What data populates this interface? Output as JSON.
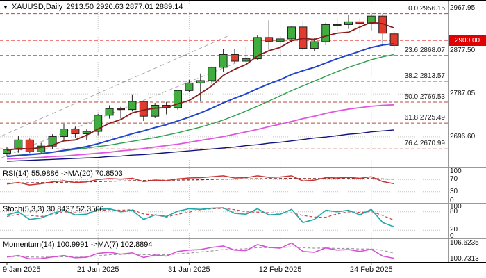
{
  "header": {
    "symbol": "XAUUSD,Daily",
    "ohlc": "2913.50 2920.63 2877.01 2889.14"
  },
  "icons": {
    "symbol_marker": "▼"
  },
  "chart_data": {
    "type": "candlestick",
    "title": "XAUUSD Daily",
    "y_range": [
      2634.8,
      2982
    ],
    "y_axis": {
      "labels": [
        {
          "text": "2967.95",
          "price": 2967.95
        },
        {
          "text": "2877.50",
          "price": 2877.5
        },
        {
          "text": "2787.05",
          "price": 2787.05
        },
        {
          "text": "2696.60",
          "price": 2696.6
        }
      ],
      "current": {
        "text": "2900.00",
        "price": 2900.0
      }
    },
    "x_axis": {
      "tick_labels": [
        {
          "text": "9 Jan 2025",
          "index": 0
        },
        {
          "text": "21 Jan 2025",
          "index": 8
        },
        {
          "text": "31 Jan 2025",
          "index": 16
        },
        {
          "text": "12 Feb 2025",
          "index": 24
        },
        {
          "text": "24 Feb 2025",
          "index": 32
        }
      ]
    },
    "colors": {
      "up": "#3fae3f",
      "down": "#e23b2e",
      "outline": "#222222",
      "grid": "#c8c8c8",
      "separator": "#999999",
      "fib": "#b84a3a",
      "price_line": "#e00000",
      "badge_bg": "#e00000",
      "badge_text": "#ffffff"
    },
    "candles": {
      "dates": [
        "9 Jan",
        "10 Jan",
        "13 Jan",
        "14 Jan",
        "15 Jan",
        "16 Jan",
        "17 Jan",
        "20 Jan",
        "21 Jan",
        "22 Jan",
        "23 Jan",
        "24 Jan",
        "27 Jan",
        "28 Jan",
        "29 Jan",
        "30 Jan",
        "31 Jan",
        "3 Feb",
        "4 Feb",
        "5 Feb",
        "6 Feb",
        "7 Feb",
        "10 Feb",
        "11 Feb",
        "12 Feb",
        "13 Feb",
        "14 Feb",
        "17 Feb",
        "18 Feb",
        "19 Feb",
        "20 Feb",
        "21 Feb",
        "24 Feb",
        "25 Feb",
        "26 Feb"
      ],
      "ohlc": [
        [
          2662,
          2675,
          2655,
          2670
        ],
        [
          2670,
          2698,
          2663,
          2690
        ],
        [
          2690,
          2693,
          2662,
          2665
        ],
        [
          2665,
          2684,
          2660,
          2677
        ],
        [
          2677,
          2702,
          2670,
          2697
        ],
        [
          2697,
          2724,
          2690,
          2713
        ],
        [
          2713,
          2718,
          2695,
          2703
        ],
        [
          2703,
          2712,
          2689,
          2708
        ],
        [
          2708,
          2745,
          2700,
          2742
        ],
        [
          2742,
          2763,
          2735,
          2756
        ],
        [
          2756,
          2760,
          2735,
          2754
        ],
        [
          2754,
          2786,
          2750,
          2771
        ],
        [
          2771,
          2772,
          2730,
          2740
        ],
        [
          2740,
          2768,
          2736,
          2763
        ],
        [
          2763,
          2770,
          2744,
          2758
        ],
        [
          2758,
          2796,
          2754,
          2794
        ],
        [
          2794,
          2817,
          2790,
          2810
        ],
        [
          2810,
          2830,
          2772,
          2815
        ],
        [
          2815,
          2845,
          2808,
          2843
        ],
        [
          2843,
          2882,
          2834,
          2870
        ],
        [
          2870,
          2882,
          2852,
          2856
        ],
        [
          2856,
          2887,
          2852,
          2861
        ],
        [
          2861,
          2911,
          2858,
          2906
        ],
        [
          2906,
          2942,
          2880,
          2898
        ],
        [
          2898,
          2909,
          2864,
          2903
        ],
        [
          2903,
          2930,
          2895,
          2928
        ],
        [
          2928,
          2940,
          2877,
          2883
        ],
        [
          2883,
          2905,
          2878,
          2897
        ],
        [
          2897,
          2937,
          2890,
          2933
        ],
        [
          2933,
          2947,
          2918,
          2933
        ],
        [
          2933,
          2954,
          2924,
          2939
        ],
        [
          2939,
          2946,
          2916,
          2936
        ],
        [
          2936,
          2956.15,
          2920,
          2951
        ],
        [
          2951,
          2956,
          2888,
          2915
        ],
        [
          2913.5,
          2920.63,
          2877.01,
          2889.14
        ]
      ]
    },
    "overlays": [
      {
        "name": "ma-navy-line",
        "color": "#10137e",
        "width": 1.4,
        "values": [
          2645,
          2646,
          2647,
          2648,
          2649,
          2650,
          2651,
          2652,
          2653,
          2655,
          2656,
          2658,
          2659,
          2661,
          2663,
          2665,
          2667,
          2669,
          2671,
          2673,
          2675,
          2678,
          2680,
          2683,
          2685,
          2688,
          2691,
          2694,
          2696,
          2699,
          2702,
          2704,
          2707,
          2709,
          2711
        ]
      },
      {
        "name": "ma-magenta-line",
        "color": "#e055e0",
        "width": 1.8,
        "values": [
          2650,
          2651,
          2652,
          2653,
          2655,
          2656,
          2658,
          2660,
          2662,
          2664,
          2667,
          2669,
          2672,
          2675,
          2678,
          2681,
          2685,
          2689,
          2693,
          2697,
          2702,
          2707,
          2712,
          2718,
          2723,
          2729,
          2735,
          2740,
          2746,
          2751,
          2755,
          2758,
          2761,
          2763,
          2764
        ]
      },
      {
        "name": "ma-green-line",
        "color": "#2e9e50",
        "width": 1.4,
        "values": [
          2656,
          2658,
          2660,
          2662,
          2664,
          2667,
          2670,
          2673,
          2676,
          2679,
          2683,
          2687,
          2691,
          2695,
          2700,
          2705,
          2711,
          2717,
          2724,
          2732,
          2741,
          2751,
          2761,
          2772,
          2783,
          2794,
          2804,
          2814,
          2824,
          2834,
          2843,
          2851,
          2859,
          2865,
          2870
        ]
      },
      {
        "name": "ma-blue-line",
        "color": "#2144cc",
        "width": 2,
        "values": [
          2655,
          2657,
          2659,
          2661,
          2664,
          2668,
          2672,
          2676,
          2682,
          2689,
          2696,
          2703,
          2709,
          2716,
          2722,
          2730,
          2738,
          2747,
          2757,
          2768,
          2778,
          2787,
          2798,
          2808,
          2817,
          2828,
          2836,
          2843,
          2852,
          2861,
          2869,
          2877,
          2885,
          2890,
          2893
        ]
      },
      {
        "name": "ma-darkred-line",
        "color": "#8b1a1a",
        "width": 1.8,
        "values": [
          2668,
          2672,
          2671,
          2674,
          2679,
          2688,
          2690,
          2700,
          2713,
          2725,
          2733,
          2747,
          2753,
          2757,
          2758,
          2766,
          2773,
          2788,
          2804,
          2826,
          2839,
          2849,
          2867,
          2878,
          2885,
          2899,
          2904,
          2902,
          2909,
          2915,
          2917,
          2928,
          2938,
          2935,
          2926
        ]
      }
    ],
    "fibonacci": [
      {
        "text": "0.0 2956.15",
        "level": 0.0,
        "price": 2956.15
      },
      {
        "text": "23.6 2868.07",
        "level": 23.6,
        "price": 2868.07
      },
      {
        "text": "38.2 2813.57",
        "level": 38.2,
        "price": 2813.57
      },
      {
        "text": "50.0 2769.53",
        "level": 50.0,
        "price": 2769.53
      },
      {
        "text": "61.8 2725.49",
        "level": 61.8,
        "price": 2725.49
      },
      {
        "text": "76.4 2670.99",
        "level": 76.4,
        "price": 2670.99
      }
    ],
    "trendlines": [
      {
        "i1": -0.5,
        "p1": 2698,
        "i2": 19.5,
        "p2": 2910
      },
      {
        "i1": -0.5,
        "p1": 2652,
        "i2": 20.5,
        "p2": 2856
      }
    ],
    "indicators": {
      "rsi": {
        "title": "RSI(14) 55.9886  ->MA(20) 70.8503",
        "range": [
          0,
          100
        ],
        "grid_levels": [
          70,
          30
        ],
        "axis_labels": [
          {
            "text": "100",
            "v": 100
          },
          {
            "text": "70",
            "v": 70
          },
          {
            "text": "30",
            "v": 30
          },
          {
            "text": "0",
            "v": 0
          }
        ],
        "lines": [
          {
            "name": "ma",
            "color": "#7a2020",
            "dash": "4,3",
            "width": 1.2,
            "values": [
              58,
              58.5,
              59,
              59.5,
              60,
              61,
              61.5,
              62,
              63,
              64,
              65,
              66,
              66.5,
              67,
              67.5,
              68,
              68.5,
              69,
              70,
              71,
              71.5,
              72,
              72.5,
              73,
              73.2,
              73.5,
              73.2,
              73,
              73.2,
              73.3,
              73.4,
              73.3,
              73.2,
              72,
              70.85
            ]
          },
          {
            "name": "main",
            "color": "#cc3333",
            "dash": "",
            "width": 1.5,
            "values": [
              55,
              60,
              52,
              56,
              62,
              66,
              60,
              62,
              70,
              73,
              71,
              74,
              63,
              68,
              66,
              72,
              75,
              76,
              79,
              82,
              75,
              76,
              82,
              77,
              78,
              82,
              65,
              68,
              76,
              75,
              77,
              74,
              79,
              63,
              55.99
            ]
          }
        ]
      },
      "stoch": {
        "title": "Stoch(5,3,3) 30.8437 52.3506",
        "range": [
          0,
          100
        ],
        "grid_levels": [
          80,
          20
        ],
        "axis_labels": [
          {
            "text": "100",
            "v": 100
          },
          {
            "text": "80",
            "v": 80
          },
          {
            "text": "20",
            "v": 20
          },
          {
            "text": "0",
            "v": 0
          }
        ],
        "lines": [
          {
            "name": "signal",
            "color": "#cc4444",
            "dash": "4,3",
            "width": 1.2,
            "values": [
              65,
              72,
              68,
              65,
              70,
              80,
              77,
              76,
              83,
              87,
              85,
              87,
              73,
              70,
              63,
              72,
              79,
              87,
              90,
              91,
              87,
              80,
              79,
              77,
              75,
              77,
              68,
              63,
              62,
              73,
              80,
              78,
              81,
              68,
              52.35
            ]
          },
          {
            "name": "main",
            "color": "#1fa8a8",
            "dash": "",
            "width": 1.6,
            "values": [
              70,
              80,
              55,
              60,
              75,
              85,
              70,
              72,
              88,
              90,
              80,
              85,
              55,
              70,
              65,
              82,
              90,
              88,
              92,
              93,
              75,
              72,
              90,
              70,
              72,
              88,
              45,
              55,
              85,
              80,
              85,
              70,
              88,
              45,
              30.84
            ]
          }
        ]
      },
      "momentum": {
        "title": "Momentum(14) 100.9991  ->MA(7) 102.8894",
        "range": [
          100.4,
          107
        ],
        "grid_levels": [],
        "axis_labels": [
          {
            "text": "106.6235",
            "v": 106.6235
          },
          {
            "text": "100.7313",
            "v": 100.7313
          }
        ],
        "lines": [
          {
            "name": "ma",
            "color": "#999999",
            "dash": "4,3",
            "width": 1.2,
            "values": [
              101.6,
              101.7,
              101.5,
              101.4,
              101.5,
              101.6,
              101.4,
              101.5,
              101.9,
              102.3,
              102.4,
              102.6,
              102.3,
              102.4,
              102.3,
              102.6,
              102.9,
              103.3,
              103.7,
              104.2,
              104.3,
              104.5,
              104.9,
              104.9,
              104.9,
              105.2,
              104.9,
              104.7,
              104.8,
              104.6,
              104.6,
              104.4,
              104.4,
              103.9,
              102.89
            ]
          },
          {
            "name": "main",
            "color": "#d94fd9",
            "dash": "",
            "width": 1.6,
            "values": [
              101.5,
              102,
              100.8,
              100.9,
              101.5,
              102,
              101.2,
              101.4,
              102.8,
              103.2,
              102.5,
              103,
              101.3,
              102.2,
              101.8,
              103.5,
              104,
              104.2,
              105,
              105.5,
              104,
              103.8,
              106,
              105,
              104.7,
              106.6,
              103.5,
              103.2,
              104.8,
              104,
              104.2,
              103.5,
              104.3,
              101.8,
              101
            ]
          }
        ]
      }
    }
  }
}
